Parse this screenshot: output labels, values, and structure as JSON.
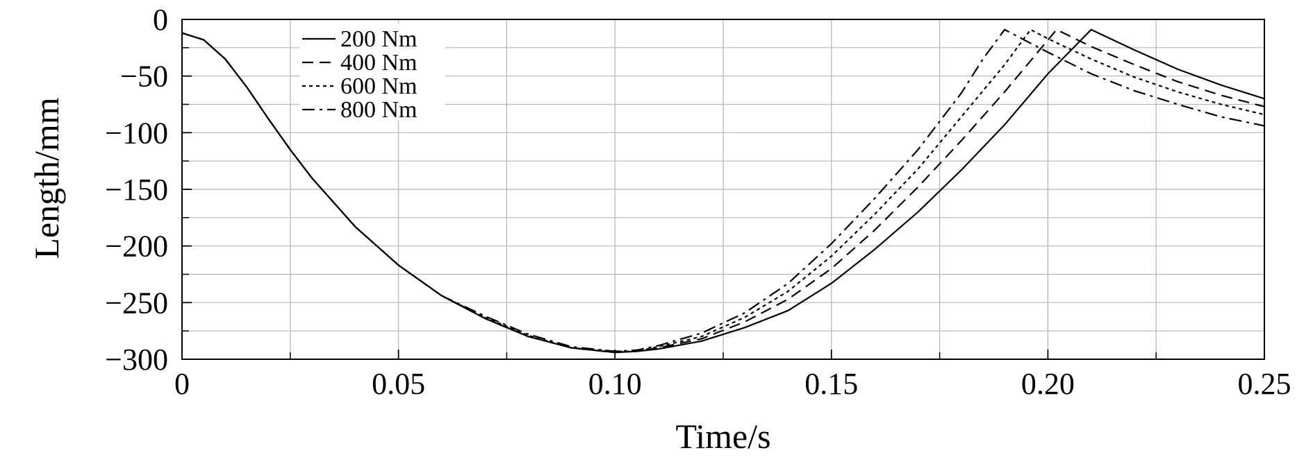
{
  "chart_data": {
    "type": "line",
    "title": "",
    "xlabel": "Time/s",
    "ylabel": "Length/mm",
    "xlim": [
      0,
      0.25
    ],
    "ylim": [
      -300,
      0
    ],
    "x_ticks": [
      0,
      0.05,
      0.1,
      0.15,
      0.2,
      0.25
    ],
    "x_tick_labels": [
      "0",
      "0.05",
      "0.10",
      "0.15",
      "0.20",
      "0.25"
    ],
    "y_ticks": [
      0,
      -50,
      -100,
      -150,
      -200,
      -250,
      -300
    ],
    "y_tick_labels": [
      "0",
      "−50",
      "−100",
      "−150",
      "−200",
      "−250",
      "−300"
    ],
    "grid": true,
    "legend_position": "top-left",
    "series": [
      {
        "name": "200 Nm",
        "style": "solid",
        "x": [
          0,
          0.005,
          0.01,
          0.015,
          0.02,
          0.025,
          0.03,
          0.04,
          0.05,
          0.06,
          0.07,
          0.08,
          0.09,
          0.1,
          0.105,
          0.11,
          0.12,
          0.13,
          0.14,
          0.15,
          0.16,
          0.17,
          0.18,
          0.19,
          0.2,
          0.21,
          0.22,
          0.23,
          0.24,
          0.25
        ],
        "y": [
          -12,
          -18,
          -35,
          -60,
          -88,
          -115,
          -140,
          -183,
          -217,
          -244,
          -264,
          -280,
          -290,
          -294,
          -293,
          -291,
          -284,
          -272,
          -257,
          -233,
          -203,
          -170,
          -133,
          -93,
          -48,
          -9,
          -27,
          -44,
          -58,
          -70
        ]
      },
      {
        "name": "400 Nm",
        "style": "dashed",
        "x": [
          0,
          0.005,
          0.01,
          0.015,
          0.02,
          0.025,
          0.03,
          0.04,
          0.05,
          0.06,
          0.07,
          0.08,
          0.09,
          0.1,
          0.105,
          0.11,
          0.12,
          0.13,
          0.14,
          0.15,
          0.16,
          0.17,
          0.18,
          0.19,
          0.202,
          0.21,
          0.22,
          0.23,
          0.24,
          0.25
        ],
        "y": [
          -12,
          -18,
          -35,
          -60,
          -88,
          -115,
          -140,
          -183,
          -217,
          -244,
          -264,
          -280,
          -290,
          -294,
          -293,
          -290,
          -282,
          -267,
          -247,
          -220,
          -186,
          -148,
          -107,
          -64,
          -9,
          -24,
          -40,
          -55,
          -67,
          -77
        ]
      },
      {
        "name": "600 Nm",
        "style": "dotted",
        "x": [
          0,
          0.005,
          0.01,
          0.015,
          0.02,
          0.025,
          0.03,
          0.04,
          0.05,
          0.06,
          0.07,
          0.08,
          0.09,
          0.1,
          0.105,
          0.11,
          0.12,
          0.13,
          0.14,
          0.15,
          0.16,
          0.17,
          0.18,
          0.19,
          0.196,
          0.2,
          0.21,
          0.22,
          0.23,
          0.24,
          0.25
        ],
        "y": [
          -12,
          -18,
          -35,
          -60,
          -88,
          -115,
          -140,
          -183,
          -217,
          -244,
          -263,
          -279,
          -290,
          -293,
          -293,
          -289,
          -280,
          -263,
          -240,
          -209,
          -172,
          -132,
          -86,
          -40,
          -9,
          -17,
          -35,
          -51,
          -64,
          -75,
          -84
        ]
      },
      {
        "name": "800 Nm",
        "style": "dashdot",
        "x": [
          0,
          0.005,
          0.01,
          0.015,
          0.02,
          0.025,
          0.03,
          0.04,
          0.05,
          0.06,
          0.07,
          0.08,
          0.09,
          0.1,
          0.105,
          0.11,
          0.12,
          0.13,
          0.14,
          0.15,
          0.16,
          0.17,
          0.18,
          0.185,
          0.19,
          0.2,
          0.21,
          0.22,
          0.23,
          0.24,
          0.25
        ],
        "y": [
          -12,
          -18,
          -35,
          -60,
          -88,
          -115,
          -140,
          -183,
          -217,
          -244,
          -262,
          -278,
          -289,
          -293,
          -292,
          -288,
          -277,
          -259,
          -233,
          -198,
          -158,
          -115,
          -65,
          -35,
          -9,
          -29,
          -48,
          -63,
          -75,
          -86,
          -94
        ]
      }
    ]
  }
}
